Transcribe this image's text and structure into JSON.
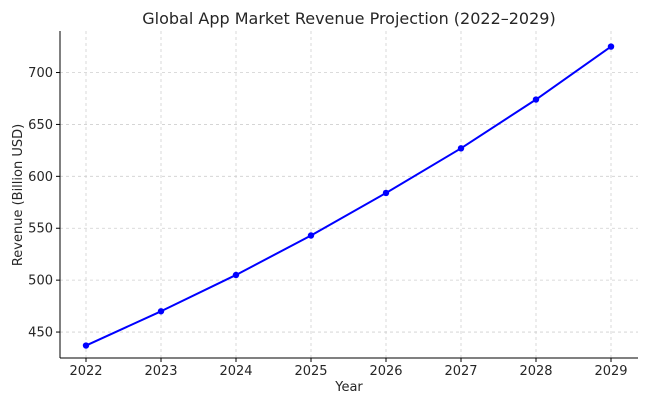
{
  "chart_data": {
    "type": "line",
    "title": "Global App Market Revenue Projection (2022–2029)",
    "xlabel": "Year",
    "ylabel": "Revenue (Billion USD)",
    "x": [
      "2022",
      "2023",
      "2024",
      "2025",
      "2026",
      "2027",
      "2028",
      "2029"
    ],
    "series": [
      {
        "values": [
          437,
          470,
          505,
          543,
          584,
          627,
          674,
          725
        ],
        "color": "#0000ff",
        "marker": "circle"
      }
    ],
    "yticks": [
      450,
      500,
      550,
      600,
      650,
      700
    ],
    "ylim": [
      425,
      740
    ],
    "grid": true,
    "legend": "none"
  }
}
